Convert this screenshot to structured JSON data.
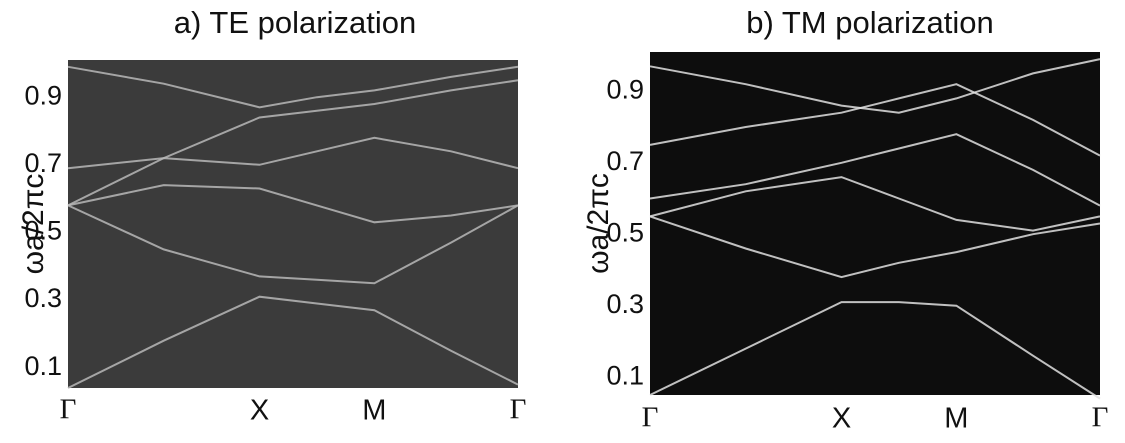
{
  "chart_data": [
    {
      "type": "line",
      "title": "a) TE polarization",
      "y_label": "ωa/2πc",
      "background": "#3b3b3b",
      "x": [
        0,
        0.5,
        1,
        1.3,
        1.6,
        2.0,
        2.35
      ],
      "xlim": [
        0,
        2.35
      ],
      "xticks": [
        {
          "value": 0,
          "label": "Γ"
        },
        {
          "value": 1,
          "label": "X"
        },
        {
          "value": 1.6,
          "label": "M"
        },
        {
          "value": 2.35,
          "label": "Γ"
        }
      ],
      "ylim": [
        0.04,
        1.01
      ],
      "yticks": [
        0.1,
        0.3,
        0.5,
        0.7,
        0.9
      ],
      "series": [
        {
          "color": "#b8b8b8",
          "values": [
            0.04,
            0.18,
            0.31,
            0.29,
            0.27,
            0.15,
            0.05
          ]
        },
        {
          "color": "#b8b8b8",
          "values": [
            0.58,
            0.45,
            0.37,
            0.36,
            0.35,
            0.47,
            0.58
          ]
        },
        {
          "color": "#b8b8b8",
          "values": [
            0.58,
            0.64,
            0.63,
            0.58,
            0.53,
            0.55,
            0.58
          ]
        },
        {
          "color": "#b8b8b8",
          "values": [
            0.69,
            0.72,
            0.7,
            0.74,
            0.78,
            0.74,
            0.69
          ]
        },
        {
          "color": "#b8b8b8",
          "values": [
            0.58,
            0.72,
            0.84,
            0.86,
            0.88,
            0.92,
            0.95
          ]
        },
        {
          "color": "#b8b8b8",
          "values": [
            0.99,
            0.94,
            0.87,
            0.9,
            0.92,
            0.96,
            0.99
          ]
        }
      ]
    },
    {
      "type": "line",
      "title": "b) TM polarization",
      "y_label": "ωa/2πc",
      "background": "#0d0d0d",
      "x": [
        0,
        0.5,
        1,
        1.3,
        1.6,
        2.0,
        2.35
      ],
      "xlim": [
        0,
        2.35
      ],
      "xticks": [
        {
          "value": 0,
          "label": "Γ"
        },
        {
          "value": 1,
          "label": "X"
        },
        {
          "value": 1.6,
          "label": "M"
        },
        {
          "value": 2.35,
          "label": "Γ"
        }
      ],
      "ylim": [
        0.05,
        1.01
      ],
      "yticks": [
        0.1,
        0.3,
        0.5,
        0.7,
        0.9
      ],
      "series": [
        {
          "color": "#e0e0e0",
          "values": [
            0.05,
            0.18,
            0.31,
            0.31,
            0.3,
            0.16,
            0.04
          ]
        },
        {
          "color": "#e0e0e0",
          "values": [
            0.55,
            0.46,
            0.38,
            0.42,
            0.45,
            0.5,
            0.53
          ]
        },
        {
          "color": "#e0e0e0",
          "values": [
            0.55,
            0.62,
            0.66,
            0.6,
            0.54,
            0.51,
            0.55
          ]
        },
        {
          "color": "#e0e0e0",
          "values": [
            0.6,
            0.64,
            0.7,
            0.74,
            0.78,
            0.68,
            0.58
          ]
        },
        {
          "color": "#e0e0e0",
          "values": [
            0.75,
            0.8,
            0.84,
            0.88,
            0.92,
            0.82,
            0.72
          ]
        },
        {
          "color": "#e0e0e0",
          "values": [
            0.97,
            0.92,
            0.86,
            0.84,
            0.88,
            0.95,
            0.99
          ]
        }
      ]
    }
  ]
}
